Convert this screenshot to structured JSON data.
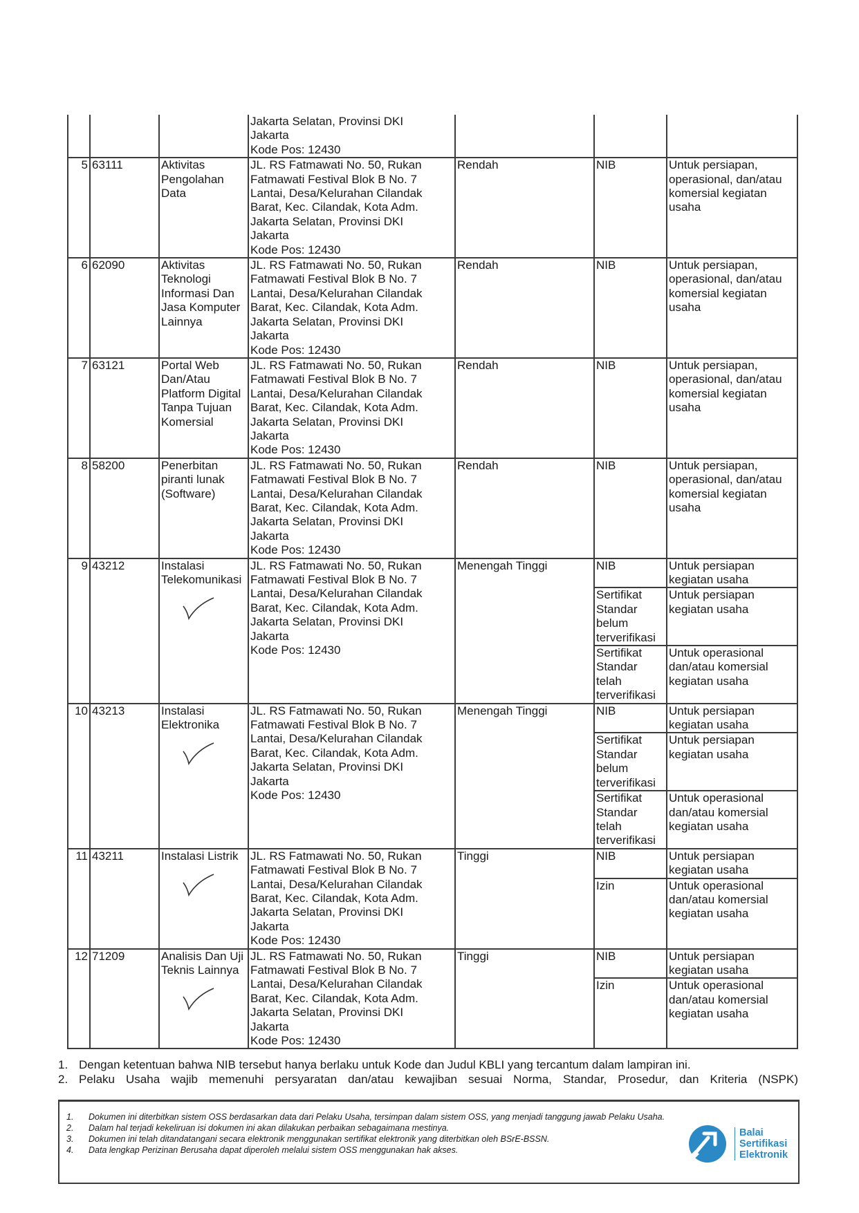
{
  "address_lines": [
    "JL. RS Fatmawati No. 50, Rukan",
    "Fatmawati Festival Blok B No. 7",
    "Lantai, Desa/Kelurahan Cilandak",
    "Barat, Kec. Cilandak, Kota Adm.",
    "Jakarta Selatan, Provinsi DKI",
    "Jakarta",
    "Kode Pos: 12430"
  ],
  "continued_row": {
    "address_lines": [
      "Jakarta Selatan, Provinsi DKI",
      "Jakarta",
      "Kode Pos: 12430"
    ]
  },
  "rows": [
    {
      "no": "5",
      "kode": "63111",
      "judul": "Aktivitas Pengolahan Data",
      "risiko": "Rendah",
      "checked": false,
      "perizinan": [
        {
          "jenis": "NIB",
          "keterangan": "Untuk persiapan, operasional, dan/atau komersial kegiatan usaha"
        }
      ]
    },
    {
      "no": "6",
      "kode": "62090",
      "judul": "Aktivitas Teknologi Informasi Dan Jasa Komputer Lainnya",
      "risiko": "Rendah",
      "checked": false,
      "perizinan": [
        {
          "jenis": "NIB",
          "keterangan": "Untuk persiapan, operasional, dan/atau komersial kegiatan usaha"
        }
      ]
    },
    {
      "no": "7",
      "kode": "63121",
      "judul": "Portal Web Dan/Atau Platform Digital Tanpa Tujuan Komersial",
      "risiko": "Rendah",
      "checked": false,
      "perizinan": [
        {
          "jenis": "NIB",
          "keterangan": "Untuk persiapan, operasional, dan/atau komersial kegiatan usaha"
        }
      ]
    },
    {
      "no": "8",
      "kode": "58200",
      "judul": "Penerbitan piranti lunak (Software)",
      "risiko": "Rendah",
      "checked": false,
      "perizinan": [
        {
          "jenis": "NIB",
          "keterangan": "Untuk persiapan, operasional, dan/atau komersial kegiatan usaha"
        }
      ]
    },
    {
      "no": "9",
      "kode": "43212",
      "judul": "Instalasi Telekomunikasi",
      "risiko": "Menengah Tinggi",
      "checked": true,
      "perizinan": [
        {
          "jenis": "NIB",
          "keterangan": "Untuk persiapan kegiatan usaha"
        },
        {
          "jenis": "Sertifikat Standar belum terverifikasi",
          "keterangan": "Untuk persiapan kegiatan usaha"
        },
        {
          "jenis": "Sertifikat Standar telah terverifikasi",
          "keterangan": "Untuk operasional dan/atau komersial kegiatan usaha"
        }
      ]
    },
    {
      "no": "10",
      "kode": "43213",
      "judul": "Instalasi Elektronika",
      "risiko": "Menengah Tinggi",
      "checked": true,
      "perizinan": [
        {
          "jenis": "NIB",
          "keterangan": "Untuk persiapan kegiatan usaha"
        },
        {
          "jenis": "Sertifikat Standar belum terverifikasi",
          "keterangan": "Untuk persiapan kegiatan usaha"
        },
        {
          "jenis": "Sertifikat Standar telah terverifikasi",
          "keterangan": "Untuk operasional dan/atau komersial kegiatan usaha"
        }
      ]
    },
    {
      "no": "11",
      "kode": "43211",
      "judul": "Instalasi Listrik",
      "risiko": "Tinggi",
      "checked": true,
      "perizinan": [
        {
          "jenis": "NIB",
          "keterangan": "Untuk persiapan kegiatan usaha"
        },
        {
          "jenis": "Izin",
          "keterangan": "Untuk operasional dan/atau komersial kegiatan usaha"
        }
      ]
    },
    {
      "no": "12",
      "kode": "71209",
      "judul": "Analisis Dan Uji Teknis Lainnya",
      "risiko": "Tinggi",
      "checked": true,
      "perizinan": [
        {
          "jenis": "NIB",
          "keterangan": "Untuk persiapan kegiatan usaha"
        },
        {
          "jenis": "Izin",
          "keterangan": "Untuk operasional dan/atau komersial kegiatan usaha"
        }
      ]
    }
  ],
  "notes": [
    {
      "num": "1.",
      "text": "Dengan ketentuan bahwa NIB tersebut hanya berlaku untuk Kode dan Judul KBLI yang tercantum dalam lampiran ini."
    },
    {
      "num": "2.",
      "text": "Pelaku Usaha wajib memenuhi persyaratan dan/atau kewajiban sesuai Norma, Standar, Prosedur, dan Kriteria (NSPK)"
    }
  ],
  "footer": {
    "items": [
      {
        "num": "1.",
        "text": "Dokumen ini diterbitkan sistem OSS berdasarkan data dari Pelaku Usaha, tersimpan dalam sistem OSS, yang menjadi tanggung jawab Pelaku Usaha."
      },
      {
        "num": "2.",
        "text": "Dalam hal terjadi kekeliruan isi dokumen ini akan dilakukan perbaikan sebagaimana mestinya."
      },
      {
        "num": "3.",
        "text": "Dokumen ini telah ditandatangani secara elektronik menggunakan sertifikat elektronik yang diterbitkan oleh BSrE-BSSN."
      },
      {
        "num": "4.",
        "text": "Data lengkap Perizinan Berusaha dapat diperoleh melalui sistem OSS menggunakan hak akses."
      }
    ],
    "logo": {
      "lines": [
        "Balai",
        "Sertifikasi",
        "Elektronik"
      ],
      "color": "#2b8ac6"
    }
  }
}
